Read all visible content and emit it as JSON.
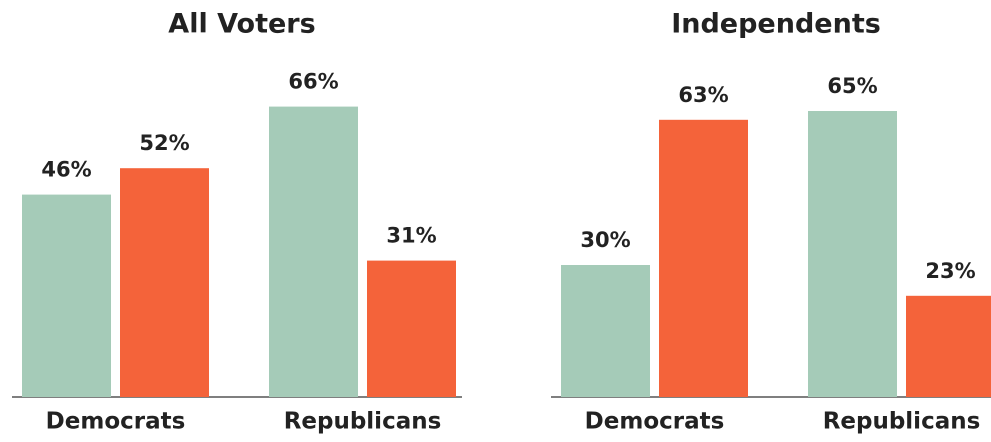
{
  "chart_data": [
    {
      "type": "bar",
      "title": "All Voters",
      "categories": [
        "Democrats",
        "Republicans"
      ],
      "series": [
        {
          "color": "#a5cbb8",
          "values": [
            46,
            66
          ],
          "value_labels": [
            "46%",
            "66%"
          ]
        },
        {
          "color": "#f4633a",
          "values": [
            52,
            31
          ],
          "value_labels": [
            "52%",
            "31%"
          ]
        }
      ]
    },
    {
      "type": "bar",
      "title": "Independents",
      "categories": [
        "Democrats",
        "Republicans"
      ],
      "series": [
        {
          "color": "#a5cbb8",
          "values": [
            30,
            65
          ],
          "value_labels": [
            "30%",
            "65%"
          ]
        },
        {
          "color": "#f4633a",
          "values": [
            63,
            23
          ],
          "value_labels": [
            "63%",
            "23%"
          ]
        }
      ]
    }
  ]
}
